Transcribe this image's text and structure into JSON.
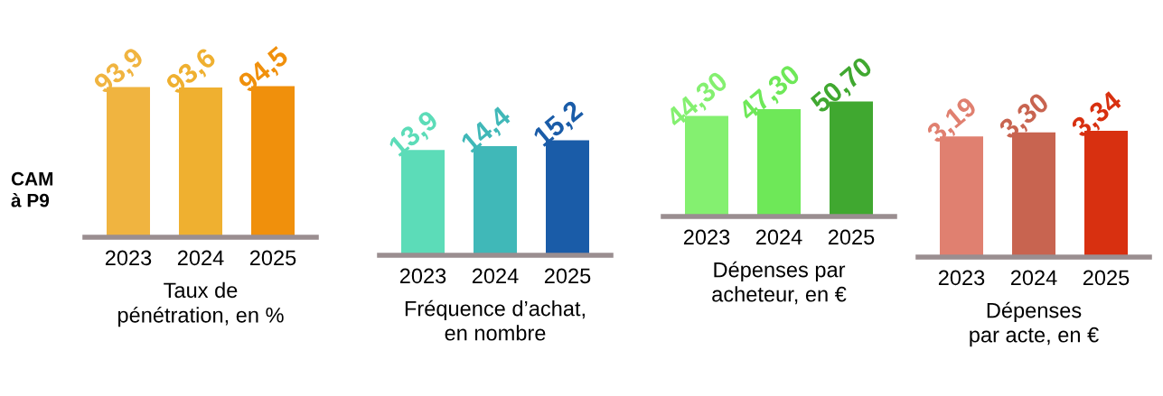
{
  "chart_data": [
    {
      "type": "bar",
      "xlabel": "Taux de\npénétration, en %",
      "categories": [
        "2023",
        "2024",
        "2025"
      ],
      "values": [
        93.9,
        93.6,
        94.5
      ],
      "value_labels": [
        "93,9",
        "93,6",
        "94,5"
      ],
      "colors": [
        "#f0b440",
        "#efb030",
        "#f0900c"
      ],
      "tick_labels": "x",
      "annotations": [
        "CAM\nà P9"
      ]
    },
    {
      "type": "bar",
      "xlabel": "Fréquence d’achat,\nen nombre",
      "categories": [
        "2023",
        "2024",
        "2025"
      ],
      "values": [
        13.9,
        14.4,
        15.2
      ],
      "value_labels": [
        "13,9",
        "14,4",
        "15,2"
      ],
      "colors": [
        "#5cdcb8",
        "#40b8b8",
        "#1a5ca8"
      ],
      "tick_labels": "x"
    },
    {
      "type": "bar",
      "xlabel": "Dépenses par\nacheteur, en €",
      "categories": [
        "2023",
        "2024",
        "2025"
      ],
      "values": [
        44.3,
        47.3,
        50.7
      ],
      "value_labels": [
        "44,30",
        "47,30",
        "50,70"
      ],
      "colors": [
        "#84f070",
        "#6ee858",
        "#40a830"
      ],
      "tick_labels": "x"
    },
    {
      "type": "bar",
      "xlabel": "Dépenses\npar acte, en €",
      "categories": [
        "2023",
        "2024",
        "2025"
      ],
      "values": [
        3.19,
        3.3,
        3.34
      ],
      "value_labels": [
        "3,19",
        "3,30",
        "3,34"
      ],
      "colors": [
        "#e08070",
        "#c86450",
        "#d83010"
      ],
      "tick_labels": "x"
    }
  ]
}
